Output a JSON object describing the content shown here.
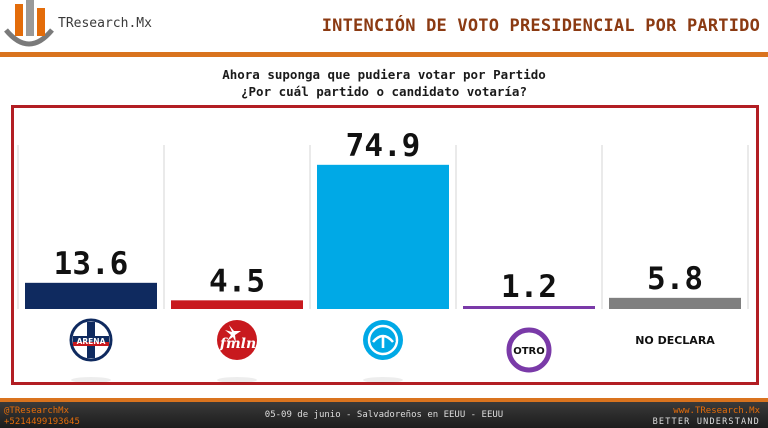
{
  "header": {
    "brand": "TResearch.Mx",
    "title": "INTENCIÓN DE VOTO PRESIDENCIAL POR PARTIDO"
  },
  "question": {
    "line1": "Ahora suponga que pudiera votar por Partido",
    "line2": "¿Por cuál  partido o candidato votaría?"
  },
  "chart_data": {
    "type": "bar",
    "categories": [
      "ARENA",
      "fmln",
      "",
      "OTRO",
      "NO DECLARA"
    ],
    "values": [
      13.6,
      4.5,
      74.9,
      1.2,
      5.8
    ],
    "value_labels": [
      "13.6",
      "4.5",
      "74.9",
      "1.2",
      "5.8"
    ],
    "colors": [
      "#0f2a5f",
      "#c8191e",
      "#00a9e6",
      "#7a3aa8",
      "#7f7f7f"
    ],
    "icons": [
      "arena-logo-icon",
      "fmln-logo-icon",
      "nuevas-ideas-logo-icon",
      "otro-badge-icon",
      "no-declara-label"
    ],
    "badge_labels": {
      "arena": "ARENA",
      "fmln": "fmln",
      "otro": "OTRO",
      "no_declara": "NO DECLARA"
    },
    "ylim": [
      0,
      80
    ],
    "title": "",
    "xlabel": "",
    "ylabel": ""
  },
  "footer": {
    "handle": "@TResearchMx",
    "phone": "+5214499193645",
    "note": "05-09 de junio  - Salvadoreños en EEUU - EEUU",
    "site": "www.TResearch.Mx",
    "tagline": "BETTER UNDERSTAND"
  }
}
